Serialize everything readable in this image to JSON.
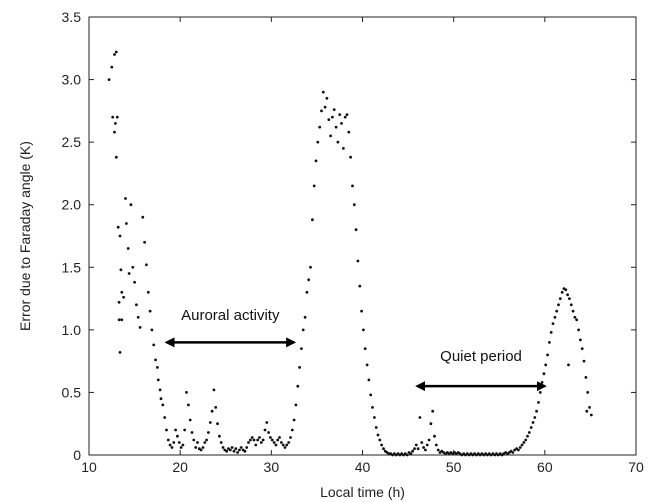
{
  "chart_data": {
    "type": "scatter",
    "title": "",
    "xlabel": "Local time (h)",
    "ylabel": "Error due to Faraday angle (K)",
    "xlim": [
      10,
      70
    ],
    "ylim": [
      0,
      3.5
    ],
    "xticks": [
      10,
      20,
      30,
      40,
      50,
      60,
      70
    ],
    "yticks": [
      0,
      0.5,
      1.0,
      1.5,
      2.0,
      2.5,
      3.0,
      3.5
    ],
    "xtick_labels": [
      "10",
      "20",
      "30",
      "40",
      "50",
      "60",
      "70"
    ],
    "ytick_labels": [
      "0",
      "0.5",
      "1.0",
      "1.5",
      "2.0",
      "2.5",
      "3.0",
      "3.5"
    ],
    "grid": false,
    "legend": "none",
    "marker_color": "#111111",
    "annotations": [
      {
        "text": "Auroral activity",
        "x": 25.5,
        "y": 1.08,
        "arrow_from": 18.5,
        "arrow_to": 32.5,
        "arrow_y": 0.9
      },
      {
        "text": "Quiet period",
        "x": 53.0,
        "y": 0.75,
        "arrow_from": 46.0,
        "arrow_to": 60.0,
        "arrow_y": 0.55
      }
    ],
    "series": [
      {
        "points": [
          [
            12.2,
            3.0
          ],
          [
            12.5,
            3.1
          ],
          [
            12.8,
            3.2
          ],
          [
            13.0,
            3.22
          ],
          [
            12.6,
            2.7
          ],
          [
            12.9,
            2.65
          ],
          [
            13.1,
            2.7
          ],
          [
            12.8,
            2.58
          ],
          [
            13.0,
            2.38
          ],
          [
            13.2,
            1.82
          ],
          [
            13.4,
            1.75
          ],
          [
            13.5,
            1.48
          ],
          [
            13.3,
            1.22
          ],
          [
            13.6,
            1.3
          ],
          [
            13.8,
            1.26
          ],
          [
            13.3,
            1.08
          ],
          [
            13.6,
            1.08
          ],
          [
            13.4,
            0.82
          ],
          [
            14.0,
            2.05
          ],
          [
            14.1,
            1.85
          ],
          [
            14.3,
            1.65
          ],
          [
            14.4,
            1.45
          ],
          [
            14.6,
            2.0
          ],
          [
            14.8,
            1.5
          ],
          [
            15.0,
            1.38
          ],
          [
            15.2,
            1.2
          ],
          [
            15.4,
            1.1
          ],
          [
            15.6,
            1.02
          ],
          [
            15.9,
            1.9
          ],
          [
            16.1,
            1.7
          ],
          [
            16.3,
            1.52
          ],
          [
            16.5,
            1.3
          ],
          [
            16.7,
            1.15
          ],
          [
            16.9,
            1.0
          ],
          [
            17.1,
            0.88
          ],
          [
            17.3,
            0.76
          ],
          [
            17.5,
            0.7
          ],
          [
            17.6,
            0.6
          ],
          [
            17.8,
            0.52
          ],
          [
            17.9,
            0.45
          ],
          [
            18.1,
            0.4
          ],
          [
            18.3,
            0.3
          ],
          [
            18.5,
            0.2
          ],
          [
            18.7,
            0.12
          ],
          [
            18.9,
            0.08
          ],
          [
            19.1,
            0.06
          ],
          [
            19.3,
            0.1
          ],
          [
            19.5,
            0.2
          ],
          [
            19.7,
            0.15
          ],
          [
            19.9,
            0.1
          ],
          [
            20.1,
            0.06
          ],
          [
            20.3,
            0.08
          ],
          [
            20.5,
            0.2
          ],
          [
            20.7,
            0.5
          ],
          [
            20.9,
            0.4
          ],
          [
            21.1,
            0.28
          ],
          [
            21.3,
            0.18
          ],
          [
            21.5,
            0.12
          ],
          [
            21.7,
            0.06
          ],
          [
            21.9,
            0.1
          ],
          [
            22.1,
            0.05
          ],
          [
            22.3,
            0.04
          ],
          [
            22.5,
            0.06
          ],
          [
            22.7,
            0.1
          ],
          [
            22.9,
            0.12
          ],
          [
            23.1,
            0.18
          ],
          [
            23.3,
            0.26
          ],
          [
            23.5,
            0.35
          ],
          [
            23.7,
            0.52
          ],
          [
            23.9,
            0.38
          ],
          [
            24.1,
            0.25
          ],
          [
            24.3,
            0.15
          ],
          [
            24.5,
            0.1
          ],
          [
            24.7,
            0.06
          ],
          [
            24.9,
            0.04
          ],
          [
            25.1,
            0.03
          ],
          [
            25.3,
            0.05
          ],
          [
            25.5,
            0.04
          ],
          [
            25.7,
            0.06
          ],
          [
            25.9,
            0.03
          ],
          [
            26.1,
            0.05
          ],
          [
            26.3,
            0.02
          ],
          [
            26.5,
            0.04
          ],
          [
            26.7,
            0.06
          ],
          [
            26.9,
            0.04
          ],
          [
            27.1,
            0.03
          ],
          [
            27.3,
            0.06
          ],
          [
            27.5,
            0.1
          ],
          [
            27.7,
            0.12
          ],
          [
            27.9,
            0.14
          ],
          [
            28.1,
            0.12
          ],
          [
            28.3,
            0.08
          ],
          [
            28.5,
            0.12
          ],
          [
            28.7,
            0.14
          ],
          [
            28.9,
            0.1
          ],
          [
            29.1,
            0.12
          ],
          [
            29.3,
            0.2
          ],
          [
            29.5,
            0.26
          ],
          [
            29.7,
            0.18
          ],
          [
            29.9,
            0.14
          ],
          [
            30.1,
            0.12
          ],
          [
            30.3,
            0.1
          ],
          [
            30.5,
            0.08
          ],
          [
            30.7,
            0.12
          ],
          [
            30.9,
            0.14
          ],
          [
            31.1,
            0.1
          ],
          [
            31.3,
            0.08
          ],
          [
            31.5,
            0.06
          ],
          [
            31.7,
            0.08
          ],
          [
            31.9,
            0.1
          ],
          [
            32.1,
            0.14
          ],
          [
            32.3,
            0.2
          ],
          [
            32.5,
            0.28
          ],
          [
            32.7,
            0.4
          ],
          [
            32.9,
            0.55
          ],
          [
            33.1,
            0.7
          ],
          [
            33.3,
            0.85
          ],
          [
            33.5,
            1.0
          ],
          [
            33.7,
            1.1
          ],
          [
            33.9,
            1.3
          ],
          [
            34.1,
            1.4
          ],
          [
            34.3,
            1.5
          ],
          [
            34.5,
            1.88
          ],
          [
            34.7,
            2.15
          ],
          [
            34.9,
            2.35
          ],
          [
            35.1,
            2.5
          ],
          [
            35.3,
            2.62
          ],
          [
            35.5,
            2.75
          ],
          [
            35.7,
            2.9
          ],
          [
            35.9,
            2.78
          ],
          [
            36.1,
            2.85
          ],
          [
            36.3,
            2.68
          ],
          [
            36.5,
            2.55
          ],
          [
            36.7,
            2.7
          ],
          [
            36.9,
            2.76
          ],
          [
            37.1,
            2.62
          ],
          [
            37.3,
            2.5
          ],
          [
            37.5,
            2.72
          ],
          [
            37.7,
            2.65
          ],
          [
            37.9,
            2.45
          ],
          [
            38.1,
            2.7
          ],
          [
            38.3,
            2.72
          ],
          [
            38.5,
            2.58
          ],
          [
            38.7,
            2.38
          ],
          [
            38.9,
            2.15
          ],
          [
            39.1,
            2.0
          ],
          [
            39.3,
            1.8
          ],
          [
            39.5,
            1.55
          ],
          [
            39.7,
            1.35
          ],
          [
            39.9,
            1.15
          ],
          [
            40.1,
            1.0
          ],
          [
            40.3,
            0.85
          ],
          [
            40.5,
            0.72
          ],
          [
            40.7,
            0.6
          ],
          [
            40.9,
            0.48
          ],
          [
            41.1,
            0.38
          ],
          [
            41.3,
            0.3
          ],
          [
            41.5,
            0.22
          ],
          [
            41.7,
            0.16
          ],
          [
            41.9,
            0.12
          ],
          [
            42.1,
            0.08
          ],
          [
            42.3,
            0.05
          ],
          [
            42.5,
            0.03
          ],
          [
            42.7,
            0.02
          ],
          [
            42.9,
            0.01
          ],
          [
            43.1,
            0.01
          ],
          [
            43.3,
            0.0
          ],
          [
            43.5,
            0.01
          ],
          [
            43.7,
            0.0
          ],
          [
            43.9,
            0.01
          ],
          [
            44.1,
            0.0
          ],
          [
            44.3,
            0.01
          ],
          [
            44.5,
            0.0
          ],
          [
            44.7,
            0.01
          ],
          [
            44.9,
            0.0
          ],
          [
            45.1,
            0.02
          ],
          [
            45.3,
            0.01
          ],
          [
            45.5,
            0.03
          ],
          [
            45.7,
            0.05
          ],
          [
            45.9,
            0.08
          ],
          [
            46.1,
            0.05
          ],
          [
            46.3,
            0.3
          ],
          [
            46.5,
            0.1
          ],
          [
            46.7,
            0.06
          ],
          [
            46.9,
            0.04
          ],
          [
            47.1,
            0.08
          ],
          [
            47.3,
            0.12
          ],
          [
            47.5,
            0.25
          ],
          [
            47.7,
            0.35
          ],
          [
            47.9,
            0.15
          ],
          [
            48.1,
            0.08
          ],
          [
            48.3,
            0.04
          ],
          [
            48.5,
            0.02
          ],
          [
            48.7,
            0.03
          ],
          [
            48.9,
            0.02
          ],
          [
            49.1,
            0.01
          ],
          [
            49.3,
            0.02
          ],
          [
            49.5,
            0.01
          ],
          [
            49.7,
            0.02
          ],
          [
            49.9,
            0.01
          ],
          [
            50.1,
            0.02
          ],
          [
            50.3,
            0.01
          ],
          [
            50.5,
            0.02
          ],
          [
            50.7,
            0.01
          ],
          [
            50.9,
            0.0
          ],
          [
            51.1,
            0.01
          ],
          [
            51.3,
            0.0
          ],
          [
            51.5,
            0.01
          ],
          [
            51.7,
            0.0
          ],
          [
            51.9,
            0.01
          ],
          [
            52.1,
            0.0
          ],
          [
            52.3,
            0.01
          ],
          [
            52.5,
            0.0
          ],
          [
            52.7,
            0.01
          ],
          [
            52.9,
            0.0
          ],
          [
            53.1,
            0.01
          ],
          [
            53.3,
            0.0
          ],
          [
            53.5,
            0.01
          ],
          [
            53.7,
            0.0
          ],
          [
            53.9,
            0.01
          ],
          [
            54.1,
            0.0
          ],
          [
            54.3,
            0.01
          ],
          [
            54.5,
            0.0
          ],
          [
            54.7,
            0.01
          ],
          [
            54.9,
            0.0
          ],
          [
            55.1,
            0.01
          ],
          [
            55.3,
            0.0
          ],
          [
            55.5,
            0.01
          ],
          [
            55.7,
            0.02
          ],
          [
            55.9,
            0.01
          ],
          [
            56.1,
            0.02
          ],
          [
            56.3,
            0.03
          ],
          [
            56.5,
            0.02
          ],
          [
            56.7,
            0.04
          ],
          [
            56.9,
            0.05
          ],
          [
            57.1,
            0.04
          ],
          [
            57.3,
            0.06
          ],
          [
            57.5,
            0.08
          ],
          [
            57.7,
            0.1
          ],
          [
            57.9,
            0.12
          ],
          [
            58.1,
            0.15
          ],
          [
            58.3,
            0.18
          ],
          [
            58.5,
            0.22
          ],
          [
            58.7,
            0.26
          ],
          [
            58.9,
            0.3
          ],
          [
            59.1,
            0.35
          ],
          [
            59.3,
            0.42
          ],
          [
            59.5,
            0.5
          ],
          [
            59.7,
            0.58
          ],
          [
            59.9,
            0.65
          ],
          [
            60.1,
            0.72
          ],
          [
            60.3,
            0.8
          ],
          [
            60.5,
            0.9
          ],
          [
            60.7,
            0.98
          ],
          [
            60.9,
            1.05
          ],
          [
            61.1,
            1.1
          ],
          [
            61.3,
            1.15
          ],
          [
            61.5,
            1.2
          ],
          [
            61.7,
            1.25
          ],
          [
            61.9,
            1.3
          ],
          [
            62.1,
            1.33
          ],
          [
            62.3,
            1.32
          ],
          [
            62.5,
            1.28
          ],
          [
            62.7,
            1.25
          ],
          [
            62.9,
            1.2
          ],
          [
            63.1,
            1.15
          ],
          [
            63.3,
            1.1
          ],
          [
            63.5,
            1.08
          ],
          [
            63.7,
            1.0
          ],
          [
            63.9,
            0.92
          ],
          [
            64.1,
            0.85
          ],
          [
            64.3,
            0.75
          ],
          [
            64.5,
            0.62
          ],
          [
            64.7,
            0.5
          ],
          [
            64.9,
            0.38
          ],
          [
            65.1,
            0.32
          ],
          [
            62.6,
            0.72
          ],
          [
            64.6,
            0.35
          ]
        ]
      }
    ]
  }
}
